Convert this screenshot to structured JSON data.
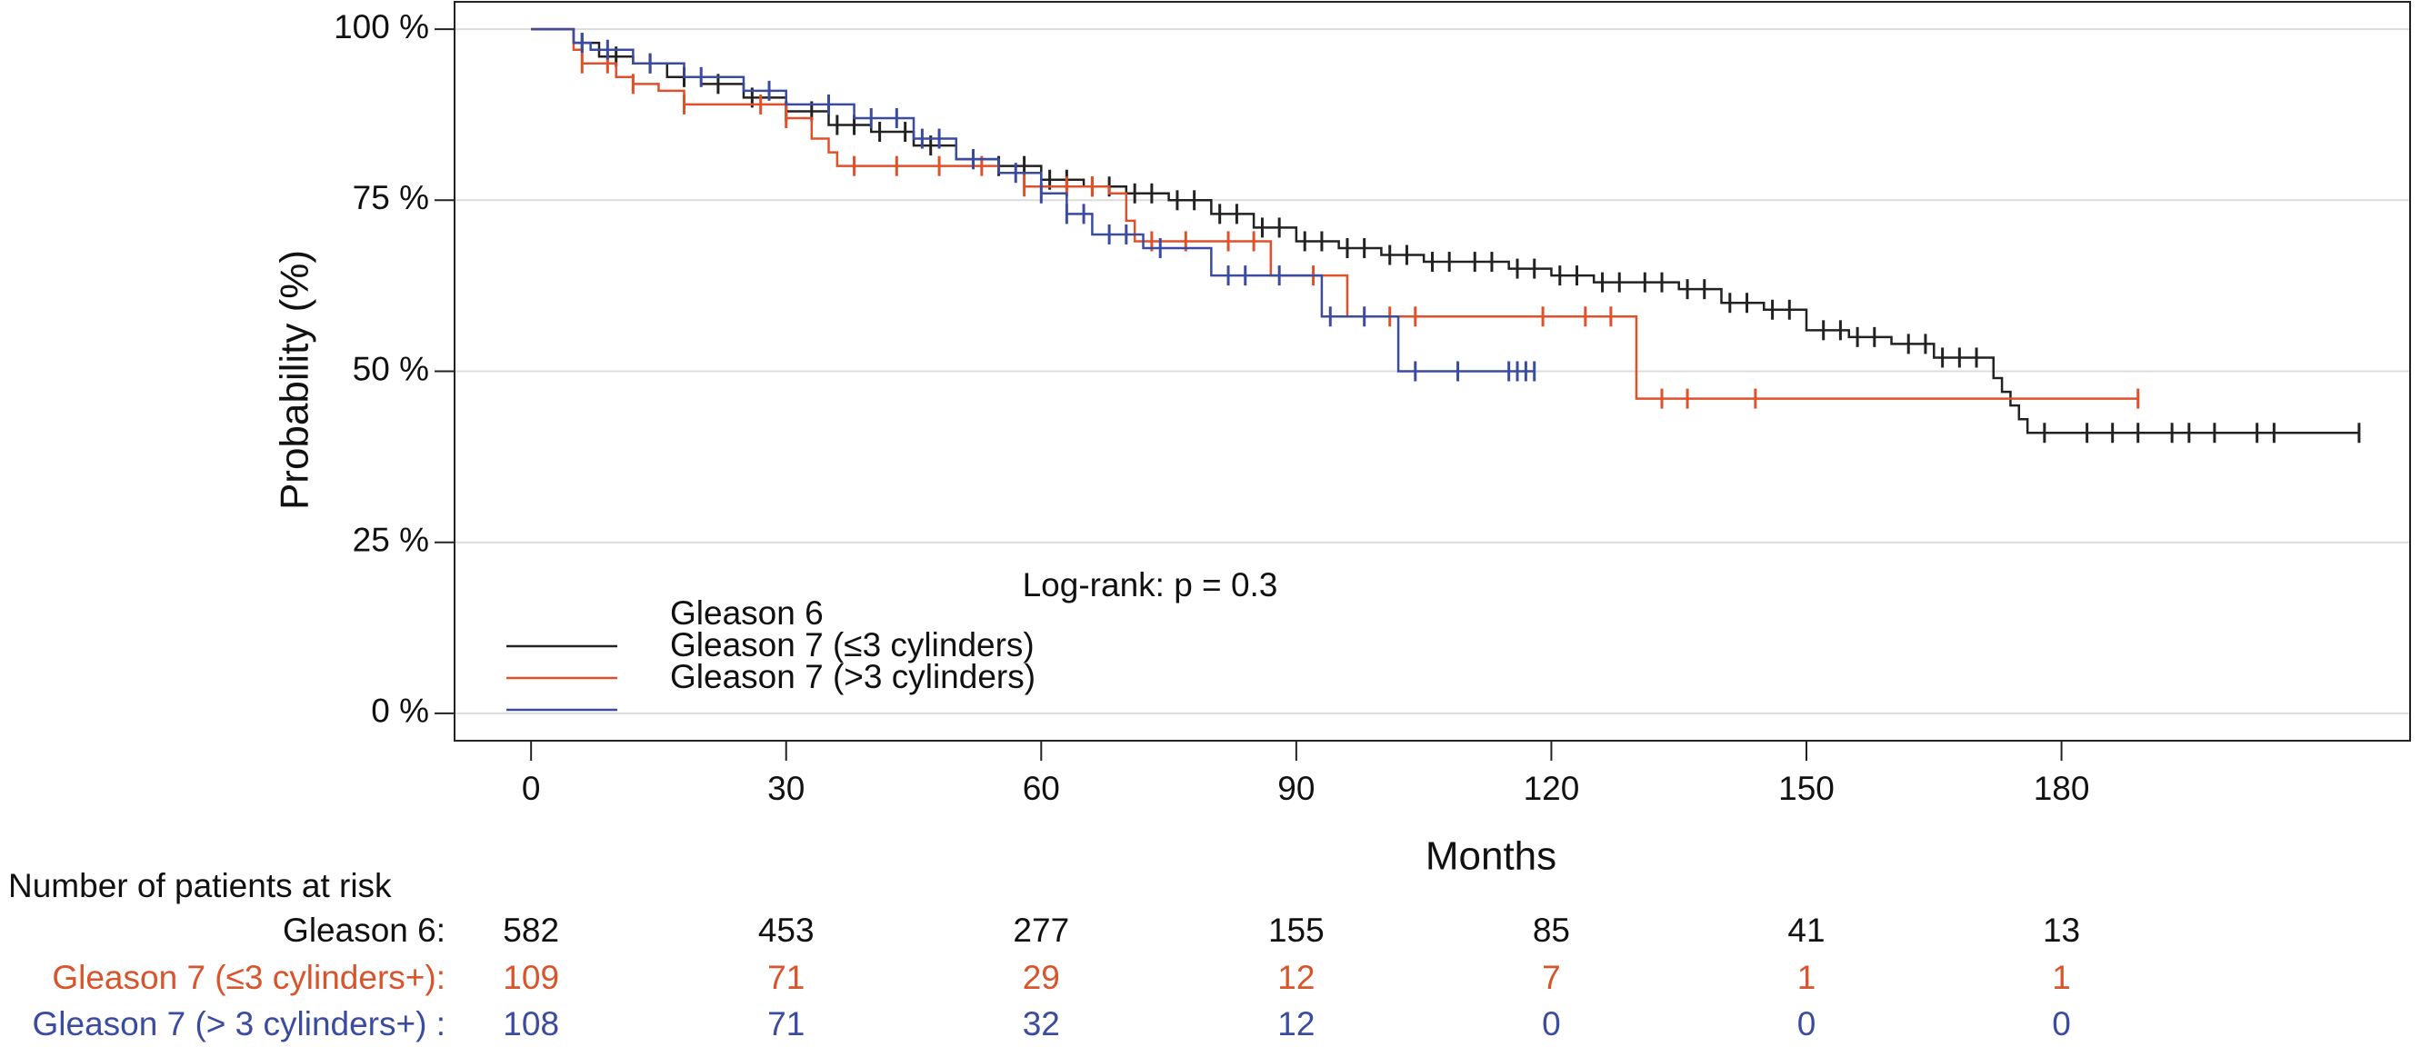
{
  "chart_data": {
    "type": "step",
    "x_label": "Months",
    "y_label": "Probability (%)",
    "annotation": "Log-rank: p = 0.3",
    "xlim": [
      -9,
      221
    ],
    "ylim": [
      -4,
      104
    ],
    "xticks": [
      0,
      30,
      60,
      90,
      120,
      150,
      180
    ],
    "yticks": [
      {
        "value": 0,
        "label": "0 %"
      },
      {
        "value": 25,
        "label": "25 %"
      },
      {
        "value": 50,
        "label": "50 %"
      },
      {
        "value": 75,
        "label": "75 %"
      },
      {
        "value": 100,
        "label": "100 %"
      }
    ],
    "grid": true,
    "legend": "bottom-left",
    "series": [
      {
        "name": "Gleason 6",
        "color": "#222222",
        "x": [
          0,
          5,
          8,
          12,
          16,
          20,
          25,
          30,
          35,
          40,
          45,
          50,
          55,
          60,
          65,
          70,
          75,
          80,
          85,
          90,
          95,
          100,
          105,
          110,
          115,
          120,
          125,
          130,
          135,
          140,
          145,
          150,
          155,
          160,
          165,
          170,
          172,
          173,
          174,
          175,
          176,
          215
        ],
        "values": [
          100,
          98,
          96,
          95,
          93,
          92,
          90,
          88,
          86,
          85,
          83,
          81,
          80,
          78,
          77,
          76,
          75,
          73,
          71,
          69,
          68,
          67,
          66,
          66,
          65,
          64,
          63,
          63,
          62,
          60,
          59,
          56,
          55,
          54,
          52,
          52,
          49,
          47,
          45,
          43,
          41,
          41
        ],
        "censored": [
          6,
          10,
          14,
          18,
          22,
          26,
          30,
          33,
          36,
          38,
          41,
          44,
          47,
          52,
          55,
          58,
          61,
          63,
          66,
          68,
          71,
          73,
          76,
          78,
          81,
          83,
          86,
          88,
          91,
          93,
          96,
          98,
          101,
          103,
          106,
          108,
          111,
          113,
          116,
          118,
          121,
          123,
          126,
          128,
          131,
          133,
          136,
          138,
          141,
          143,
          146,
          148,
          152,
          154,
          156,
          158,
          162,
          164,
          166,
          168,
          170,
          178,
          183,
          186,
          189,
          193,
          195,
          198,
          203,
          205,
          215
        ]
      },
      {
        "name": "Gleason 7 (≤3 cylinders)",
        "color": "#e0502a",
        "x": [
          0,
          5,
          6,
          10,
          12,
          15,
          18,
          25,
          30,
          33,
          35,
          36,
          50,
          55,
          58,
          68,
          70,
          71,
          87,
          96,
          130,
          189
        ],
        "values": [
          100,
          97,
          95,
          93,
          92,
          91,
          89,
          89,
          87,
          84,
          82,
          80,
          80,
          79,
          77,
          76,
          72,
          69,
          64,
          58,
          46,
          46
        ],
        "censored": [
          6,
          9,
          12,
          18,
          27,
          30,
          38,
          43,
          48,
          53,
          58,
          63,
          66,
          73,
          77,
          82,
          85,
          92,
          101,
          104,
          119,
          124,
          127,
          133,
          136,
          144,
          189
        ]
      },
      {
        "name": "Gleason 7 (>3 cylinders)",
        "color": "#3a4ba0",
        "x": [
          0,
          5,
          7,
          12,
          18,
          25,
          30,
          38,
          45,
          50,
          55,
          60,
          63,
          66,
          72,
          80,
          85,
          93,
          102,
          118
        ],
        "values": [
          100,
          98,
          97,
          95,
          93,
          91,
          89,
          87,
          84,
          81,
          79,
          76,
          73,
          70,
          68,
          64,
          64,
          58,
          50,
          50
        ],
        "censored": [
          6,
          9,
          14,
          20,
          28,
          35,
          40,
          43,
          46,
          48,
          52,
          57,
          60,
          63,
          65,
          68,
          70,
          74,
          82,
          84,
          88,
          94,
          98,
          104,
          109,
          115,
          116,
          117,
          118
        ]
      }
    ],
    "risk_table": {
      "title": "Number of patients at risk",
      "rows": [
        {
          "label": "Gleason 6:",
          "color": "#111111",
          "values": [
            582,
            453,
            277,
            155,
            85,
            41,
            13
          ]
        },
        {
          "label": "Gleason 7 (≤3 cylinders+):",
          "color": "#d9532b",
          "values": [
            109,
            71,
            29,
            12,
            7,
            1,
            1
          ]
        },
        {
          "label": "Gleason 7 (> 3 cylinders+) :",
          "color": "#3a4ba0",
          "values": [
            108,
            71,
            32,
            12,
            0,
            0,
            0
          ]
        }
      ]
    }
  }
}
